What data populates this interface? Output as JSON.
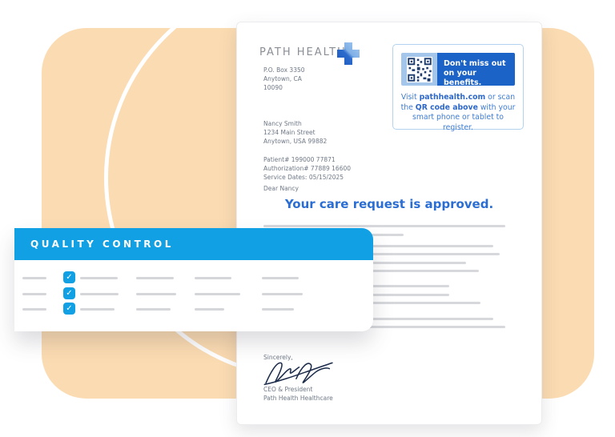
{
  "colors": {
    "accent_blue": "#10A0E3",
    "headline_blue": "#2B6ED3",
    "banner_blue": "#1C63C7",
    "qr_cell_blue": "#A3C6EA",
    "caption_blue": "#3F7CD2",
    "peach": "#FBDBB1"
  },
  "letter": {
    "logo_text": "PATH HEALTH",
    "sender_address": {
      "line1": "P.O. Box 3350",
      "line2": "Anytown, CA",
      "line3": "10090"
    },
    "recipient": {
      "line1": "Nancy Smith",
      "line2": "1234 Main Street",
      "line3": "Anytown, USA 99882"
    },
    "reference": {
      "line1": "Patient# 199000 77871",
      "line2": "Authorization# 77889 16600",
      "line3": "Service Dates: 05/15/2025"
    },
    "salutation": "Dear Nancy",
    "headline": "Your care request is approved.",
    "body_line_widths": [
      302,
      175,
      287,
      295,
      253,
      269,
      232,
      232,
      271,
      287,
      302
    ],
    "closing": "Sincerely,",
    "signer_title": "CEO & President",
    "signer_org": "Path Health Healthcare"
  },
  "qr_callout": {
    "banner_title": "Don't miss out on your benefits.",
    "caption": [
      {
        "text": "Visit ",
        "bold": false
      },
      {
        "text": "pathhealth.com",
        "bold": true
      },
      {
        "text": " or scan the ",
        "bold": false
      },
      {
        "text": "QR code above",
        "bold": true
      },
      {
        "text": " with your smart phone or tablet to register.",
        "bold": false
      }
    ]
  },
  "quality_panel": {
    "title": "QUALITY CONTROL",
    "check_glyph": "✓",
    "rows": [
      {
        "checked": true,
        "segments": [
          30,
          47,
          47,
          46,
          46
        ]
      },
      {
        "checked": true,
        "segments": [
          30,
          48,
          50,
          57,
          51
        ]
      },
      {
        "checked": true,
        "segments": [
          30,
          43,
          43,
          37,
          40
        ]
      }
    ]
  }
}
